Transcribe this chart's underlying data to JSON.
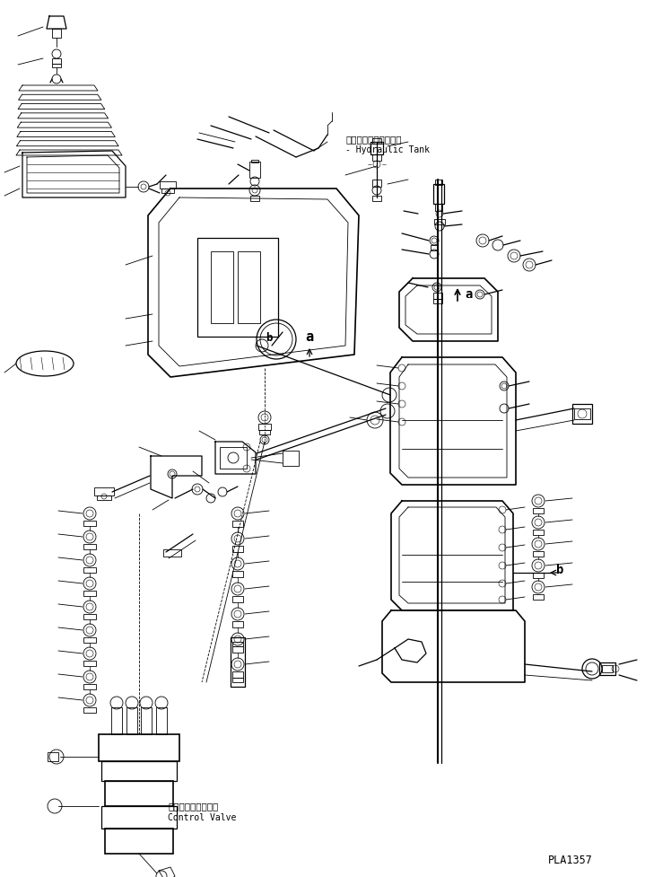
{
  "bg_color": "#ffffff",
  "line_color": "#000000",
  "fig_width": 7.19,
  "fig_height": 9.77,
  "dpi": 100,
  "part_code": "PLA1357",
  "label_hydraulic_jp": "ハイドロリックタンク",
  "label_hydraulic_en": "Hydraulic Tank",
  "label_control_jp": "コントロールバルブ",
  "label_control_en": "Control Valve",
  "label_a1": "a",
  "label_b1": "b",
  "label_a2": "a",
  "label_b2": "b"
}
